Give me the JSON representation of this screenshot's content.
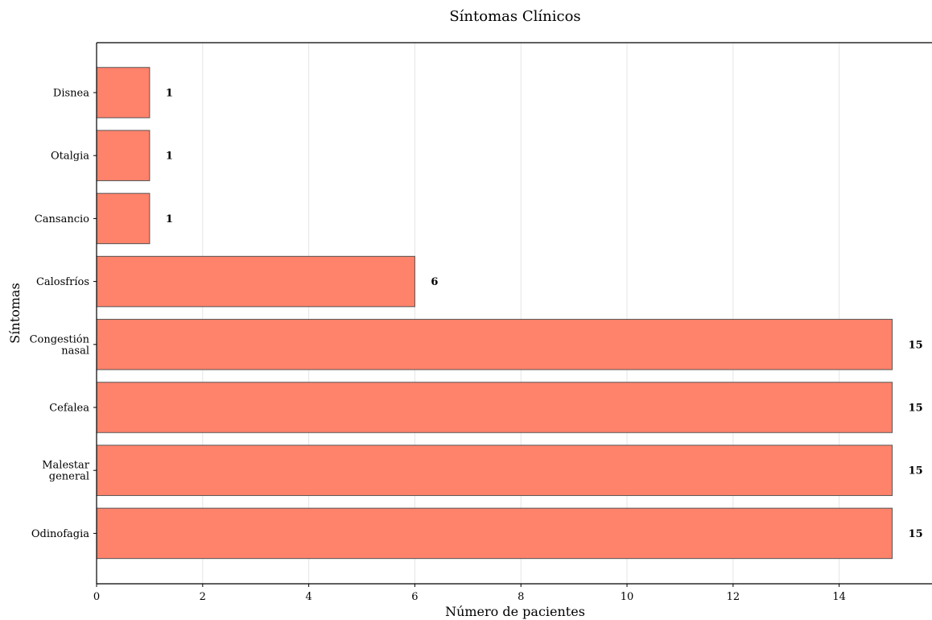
{
  "chart_data": {
    "type": "bar",
    "orientation": "horizontal",
    "title": "Síntomas Clínicos",
    "xlabel": "Número de pacientes",
    "ylabel": "Síntomas",
    "categories": [
      "Disnea",
      "Otalgia",
      "Cansancio",
      "Calosfríos",
      "Congestión nasal",
      "Cefalea",
      "Malestar general",
      "Odinofagia"
    ],
    "category_lines": [
      [
        "Disnea"
      ],
      [
        "Otalgia"
      ],
      [
        "Cansancio"
      ],
      [
        "Calosfríos"
      ],
      [
        "Congestión",
        "nasal"
      ],
      [
        "Cefalea"
      ],
      [
        "Malestar",
        "general"
      ],
      [
        "Odinofagia"
      ]
    ],
    "values": [
      1,
      1,
      1,
      6,
      15,
      15,
      15,
      15
    ],
    "xlim": [
      0,
      15.75
    ],
    "xticks": [
      0,
      2,
      4,
      6,
      8,
      10,
      12,
      14
    ],
    "grid": "vertical",
    "bar_color": "#ff826b",
    "bar_edge_color": "#555555",
    "grid_color": "#e5e5e5"
  }
}
